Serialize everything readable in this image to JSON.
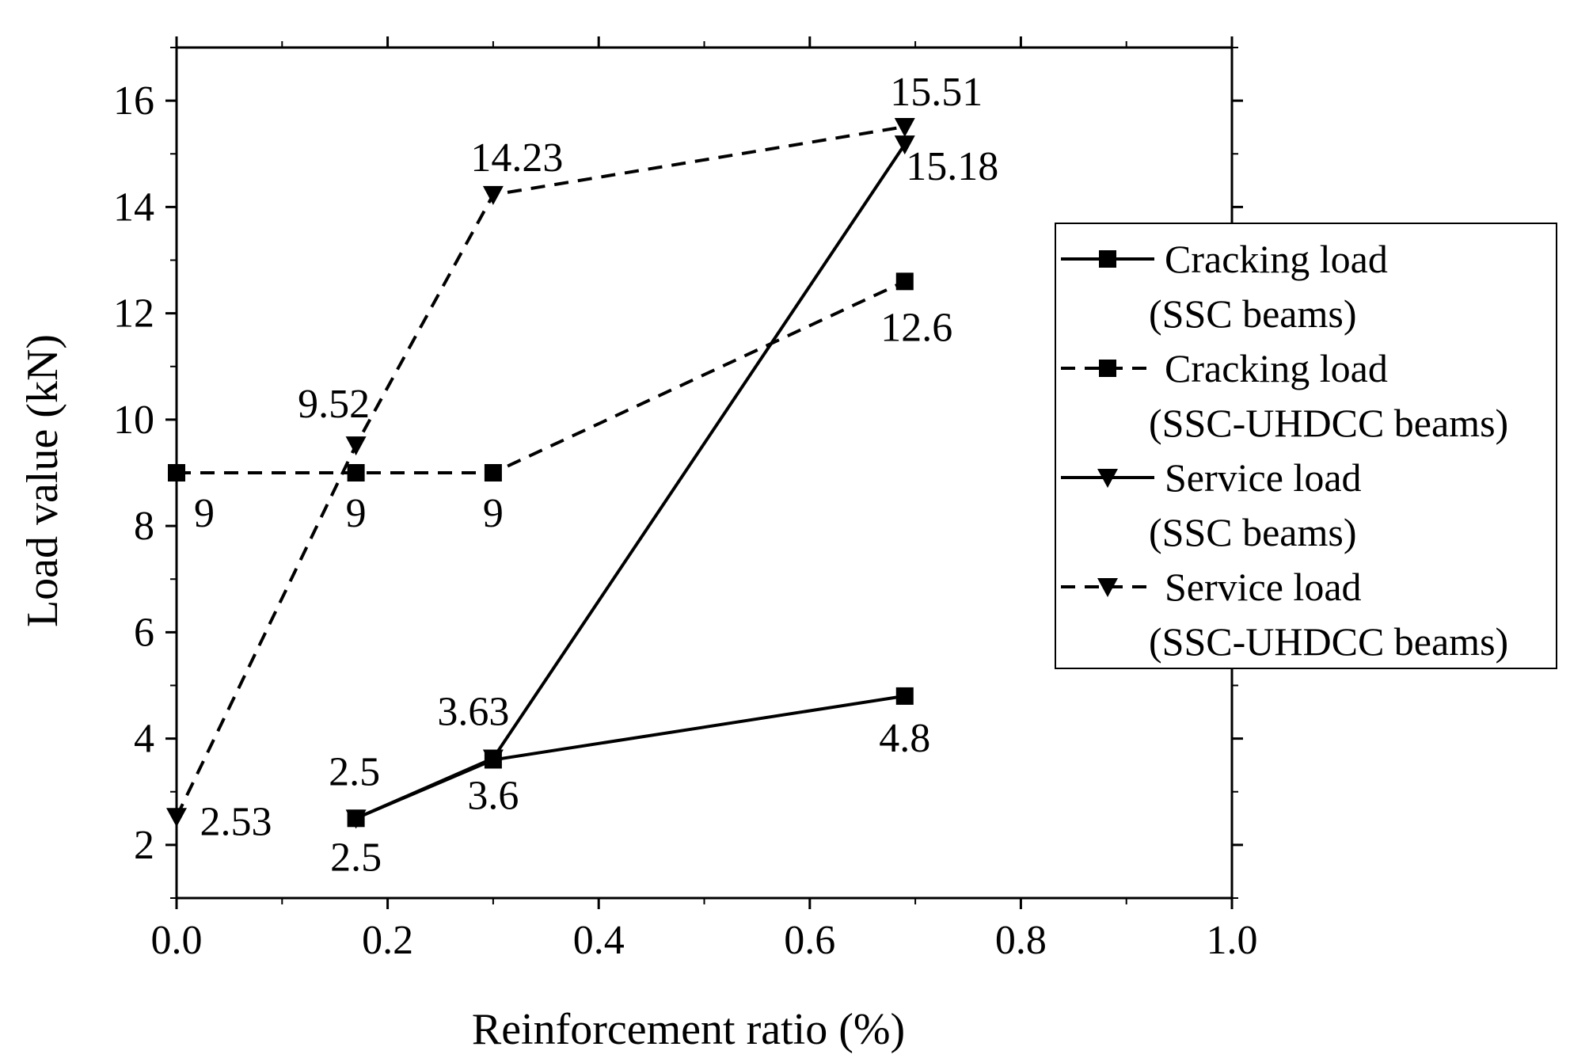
{
  "chart_data": {
    "type": "line",
    "title": "",
    "xlabel": "Reinforcement ratio (%)",
    "ylabel": "Load value (kN)",
    "xlim": [
      0.0,
      1.0
    ],
    "ylim": [
      1,
      17
    ],
    "xticks": [
      0.0,
      0.2,
      0.4,
      0.6,
      0.8,
      1.0
    ],
    "xtick_labels": [
      "0.0",
      "0.2",
      "0.4",
      "0.6",
      "0.8",
      "1.0"
    ],
    "yticks": [
      2,
      4,
      6,
      8,
      10,
      12,
      14,
      16
    ],
    "ytick_labels": [
      "2",
      "4",
      "6",
      "8",
      "10",
      "12",
      "14",
      "16"
    ],
    "grid": false,
    "legend_position": "right",
    "series": [
      {
        "name": "Cracking load (SSC beams)",
        "legend_lines": [
          "Cracking load",
          "(SSC beams)"
        ],
        "line_style": "solid",
        "marker": "square",
        "color": "#000000",
        "x": [
          0.17,
          0.3,
          0.69
        ],
        "y": [
          2.5,
          3.6,
          4.8
        ],
        "labels": [
          "2.5",
          "3.6",
          "4.8"
        ]
      },
      {
        "name": "Cracking load (SSC-UHDCC beams)",
        "legend_lines": [
          "Cracking load",
          "(SSC-UHDCC beams)"
        ],
        "line_style": "dashed",
        "marker": "square",
        "color": "#000000",
        "x": [
          0.0,
          0.17,
          0.3,
          0.69
        ],
        "y": [
          9,
          9,
          9,
          12.6
        ],
        "labels": [
          "9",
          "9",
          "9",
          "12.6"
        ]
      },
      {
        "name": "Service load (SSC beams)",
        "legend_lines": [
          "Service load",
          "(SSC beams)"
        ],
        "line_style": "solid",
        "marker": "triangle-down",
        "color": "#000000",
        "x": [
          0.17,
          0.3,
          0.69
        ],
        "y": [
          2.5,
          3.63,
          15.18
        ],
        "labels": [
          "2.5",
          "3.63",
          "15.18"
        ]
      },
      {
        "name": "Service load (SSC-UHDCC beams)",
        "legend_lines": [
          "Service load",
          "(SSC-UHDCC beams)"
        ],
        "line_style": "dashed",
        "marker": "triangle-down",
        "color": "#000000",
        "x": [
          0.0,
          0.17,
          0.3,
          0.69
        ],
        "y": [
          2.53,
          9.52,
          14.23,
          15.51
        ],
        "labels": [
          "2.53",
          "9.52",
          "14.23",
          "15.51"
        ]
      }
    ]
  }
}
